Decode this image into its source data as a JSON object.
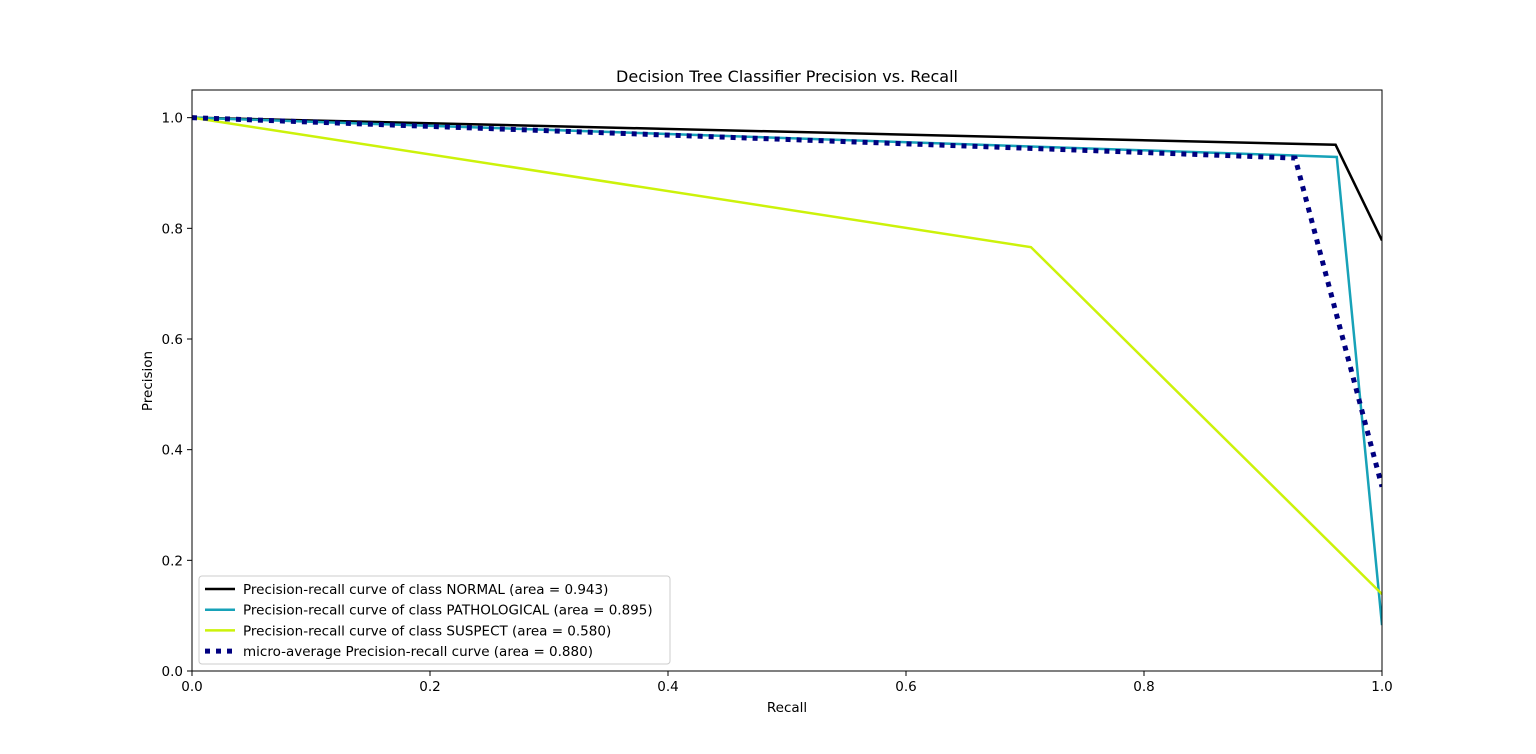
{
  "chart_data": {
    "type": "line",
    "title": "Decision Tree Classifier Precision vs. Recall",
    "xlabel": "Recall",
    "ylabel": "Precision",
    "xlim": [
      0.0,
      1.0
    ],
    "ylim": [
      0.0,
      1.05
    ],
    "xticks": [
      0.0,
      0.2,
      0.4,
      0.6,
      0.8,
      1.0
    ],
    "xtick_labels": [
      "0.0",
      "0.2",
      "0.4",
      "0.6",
      "0.8",
      "1.0"
    ],
    "yticks": [
      0.0,
      0.2,
      0.4,
      0.6,
      0.8,
      1.0
    ],
    "ytick_labels": [
      "0.0",
      "0.2",
      "0.4",
      "0.6",
      "0.8",
      "1.0"
    ],
    "grid": false,
    "legend_position": "lower-left",
    "series": [
      {
        "name": "Precision-recall curve of class NORMAL (area = 0.943)",
        "color": "#000000",
        "style": "solid",
        "x": [
          0.0,
          0.961,
          1.0
        ],
        "y": [
          1.0,
          0.951,
          0.778
        ]
      },
      {
        "name": "Precision-recall curve of class PATHOLOGICAL (area = 0.895)",
        "color": "#17a2b8",
        "style": "solid",
        "x": [
          0.0,
          0.962,
          1.0
        ],
        "y": [
          1.0,
          0.929,
          0.083
        ]
      },
      {
        "name": "Precision-recall curve of class SUSPECT (area = 0.580)",
        "color": "#ccf20a",
        "style": "solid",
        "x": [
          0.0,
          0.705,
          1.0
        ],
        "y": [
          1.0,
          0.766,
          0.139
        ]
      },
      {
        "name": "micro-average Precision-recall curve (area = 0.880)",
        "color": "#000080",
        "style": "dotted",
        "x": [
          0.0,
          0.927,
          1.0
        ],
        "y": [
          1.0,
          0.927,
          0.333
        ]
      }
    ]
  }
}
